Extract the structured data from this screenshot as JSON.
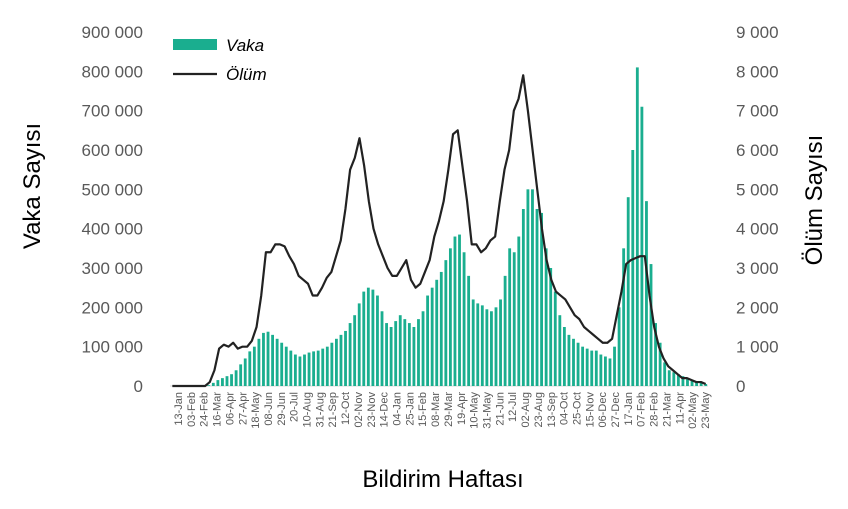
{
  "chart_data": {
    "type": "bar",
    "xlabel": "Bildirim Haftası",
    "ylabel_left": "Vaka Sayısı",
    "ylabel_right": "Ölüm Sayısı",
    "ylim_left": [
      0,
      900000
    ],
    "ylim_right": [
      0,
      9000
    ],
    "yticks_left": [
      "0",
      "100 000",
      "200 000",
      "300 000",
      "400 000",
      "500 000",
      "600 000",
      "700 000",
      "800 000",
      "900 000"
    ],
    "yticks_right": [
      "0",
      "1 000",
      "2 000",
      "3 000",
      "4 000",
      "5 000",
      "6 000",
      "7 000",
      "8 000",
      "9 000"
    ],
    "x_tick_labels": [
      "13-Jan",
      "03-Feb",
      "24-Feb",
      "16-Mar",
      "06-Apr",
      "27-Apr",
      "18-May",
      "08-Jun",
      "29-Jun",
      "20-Jul",
      "10-Aug",
      "31-Aug",
      "21-Sep",
      "12-Oct",
      "02-Nov",
      "23-Nov",
      "14-Dec",
      "04-Jan",
      "25-Jan",
      "15-Feb",
      "08-Mar",
      "29-Mar",
      "19-Apr",
      "10-May",
      "31-May",
      "21-Jun",
      "12-Jul",
      "02-Aug",
      "23-Aug",
      "13-Sep",
      "04-Oct",
      "25-Oct",
      "15-Nov",
      "06-Dec",
      "27-Dec",
      "17-Jan",
      "07-Feb",
      "28-Feb",
      "21-Mar",
      "11-Apr",
      "02-May",
      "23-May"
    ],
    "grid": false,
    "legend_position": "top-left",
    "series": [
      {
        "name": "Vaka",
        "type": "bar",
        "axis": "left",
        "color": "#1aae8f",
        "values": [
          0,
          0,
          0,
          0,
          0,
          0,
          0,
          0,
          2000,
          8000,
          15000,
          20000,
          25000,
          30000,
          40000,
          55000,
          70000,
          88000,
          100000,
          120000,
          135000,
          138000,
          130000,
          120000,
          110000,
          100000,
          90000,
          80000,
          75000,
          80000,
          85000,
          88000,
          90000,
          95000,
          100000,
          110000,
          120000,
          130000,
          140000,
          160000,
          180000,
          210000,
          240000,
          250000,
          245000,
          230000,
          190000,
          160000,
          150000,
          165000,
          180000,
          170000,
          160000,
          150000,
          170000,
          190000,
          230000,
          250000,
          270000,
          290000,
          320000,
          350000,
          380000,
          385000,
          340000,
          280000,
          220000,
          210000,
          205000,
          195000,
          190000,
          200000,
          220000,
          280000,
          350000,
          340000,
          380000,
          450000,
          500000,
          500000,
          450000,
          440000,
          350000,
          300000,
          240000,
          180000,
          150000,
          130000,
          120000,
          110000,
          100000,
          95000,
          90000,
          90000,
          80000,
          75000,
          70000,
          100000,
          200000,
          350000,
          480000,
          600000,
          810000,
          710000,
          470000,
          310000,
          160000,
          110000,
          60000,
          40000,
          35000,
          30000,
          25000,
          20000,
          15000,
          10000,
          8000,
          5000
        ]
      },
      {
        "name": "Ölüm",
        "type": "line",
        "axis": "right",
        "color": "#222222",
        "values": [
          0,
          0,
          0,
          0,
          0,
          0,
          0,
          0,
          100,
          400,
          950,
          1050,
          1000,
          1100,
          950,
          1000,
          1000,
          1150,
          1500,
          2300,
          3400,
          3400,
          3600,
          3600,
          3550,
          3300,
          3100,
          2800,
          2700,
          2600,
          2300,
          2300,
          2500,
          2750,
          2900,
          3300,
          3700,
          4500,
          5500,
          5800,
          6300,
          5600,
          4700,
          4000,
          3600,
          3300,
          3000,
          2800,
          2800,
          3000,
          3200,
          2700,
          2500,
          2600,
          2900,
          3200,
          3800,
          4200,
          4700,
          5500,
          6400,
          6500,
          5600,
          4700,
          3600,
          3600,
          3400,
          3500,
          3700,
          3800,
          4700,
          5500,
          6000,
          7000,
          7300,
          7900,
          7000,
          6000,
          5000,
          4000,
          3200,
          2700,
          2400,
          2300,
          2200,
          2000,
          1800,
          1700,
          1500,
          1400,
          1300,
          1200,
          1100,
          1100,
          1200,
          1800,
          2400,
          3100,
          3200,
          3250,
          3300,
          3300,
          2300,
          1500,
          1000,
          700,
          500,
          400,
          300,
          200,
          200,
          150,
          100,
          100,
          50
        ]
      }
    ]
  }
}
